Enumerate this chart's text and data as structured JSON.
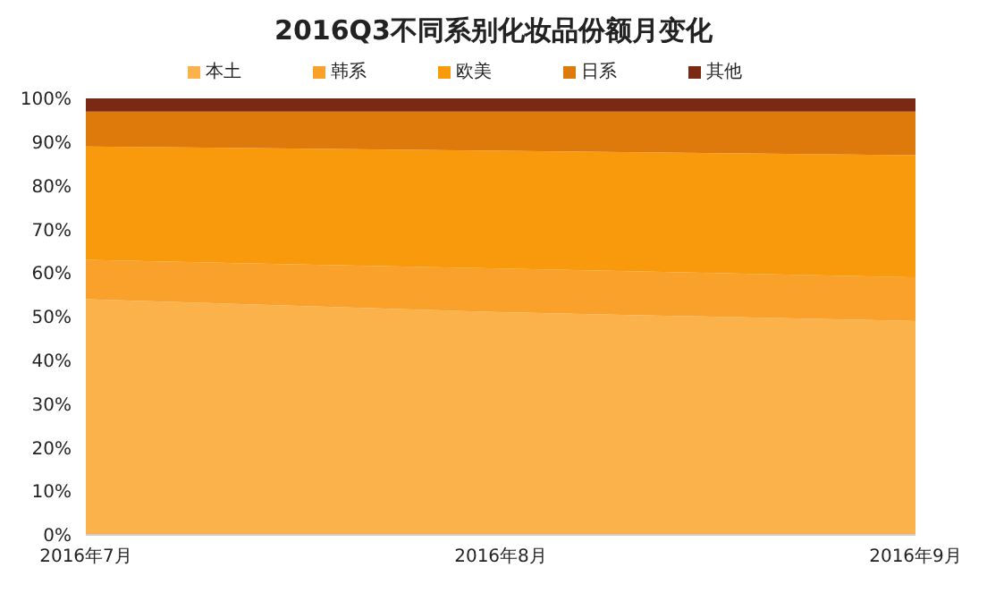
{
  "chart_data": {
    "type": "area",
    "title": "2016Q3不同系别化妆品份额月变化",
    "stacked": true,
    "categories": [
      "2016年7月",
      "2016年8月",
      "2016年9月"
    ],
    "series": [
      {
        "name": "本土",
        "color": "#fbb24a",
        "values": [
          54,
          51,
          49
        ]
      },
      {
        "name": "韩系",
        "color": "#f9a12a",
        "values": [
          9,
          10,
          10
        ]
      },
      {
        "name": "欧美",
        "color": "#f99a0c",
        "values": [
          26,
          27,
          28
        ]
      },
      {
        "name": "日系",
        "color": "#de7a0c",
        "values": [
          8,
          9,
          10
        ]
      },
      {
        "name": "其他",
        "color": "#7a2a14",
        "values": [
          3,
          3,
          3
        ]
      }
    ],
    "ylim": [
      0,
      100
    ],
    "yticks": [
      {
        "value": 0,
        "label": "0%"
      },
      {
        "value": 10,
        "label": "10%"
      },
      {
        "value": 20,
        "label": "20%"
      },
      {
        "value": 30,
        "label": "30%"
      },
      {
        "value": 40,
        "label": "40%"
      },
      {
        "value": 50,
        "label": "50%"
      },
      {
        "value": 60,
        "label": "60%"
      },
      {
        "value": 70,
        "label": "70%"
      },
      {
        "value": 80,
        "label": "80%"
      },
      {
        "value": 90,
        "label": "90%"
      },
      {
        "value": 100,
        "label": "100%"
      }
    ],
    "legend": "top",
    "grid": false
  }
}
